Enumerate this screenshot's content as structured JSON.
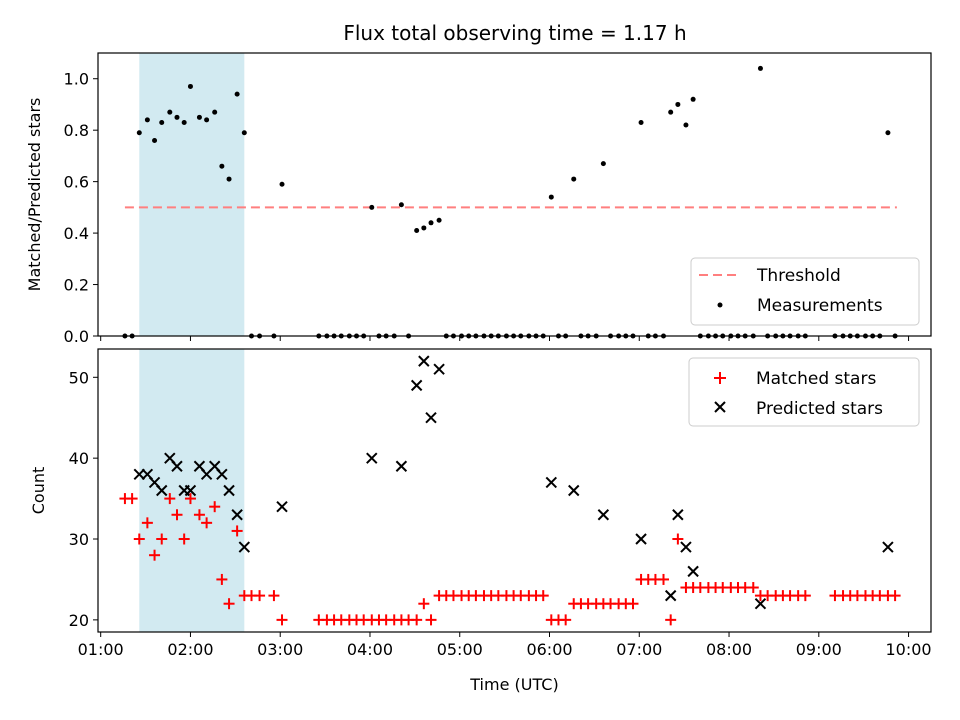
{
  "chart_data": [
    {
      "type": "scatter",
      "panel": "top",
      "title": "Flux total observing time = 1.17 h",
      "xlabel": "",
      "ylabel": "Matched/Predicted stars",
      "xlim": [
        0.97,
        10.25
      ],
      "ylim": [
        0,
        1.1
      ],
      "x_ticks": [
        1,
        2,
        3,
        4,
        5,
        6,
        7,
        8,
        9,
        10
      ],
      "x_tick_labels": [],
      "y_ticks": [
        0.0,
        0.2,
        0.4,
        0.6,
        0.8,
        1.0
      ],
      "y_tick_labels": [
        "0.0",
        "0.2",
        "0.4",
        "0.6",
        "0.8",
        "1.0"
      ],
      "shaded_region": {
        "x_start": 1.43,
        "x_end": 2.6,
        "color": "#add8e6"
      },
      "threshold": {
        "label": "Threshold",
        "value": 0.5,
        "x_start": 1.27,
        "x_end": 9.87,
        "color": "#ff7f7f"
      },
      "legend": [
        "Threshold",
        "Measurements"
      ],
      "legend_position": "bottom-right",
      "series": [
        {
          "name": "Measurements",
          "color": "#000000",
          "points": [
            [
              1.27,
              0.0
            ],
            [
              1.35,
              0.0
            ],
            [
              1.43,
              0.79
            ],
            [
              1.52,
              0.84
            ],
            [
              1.6,
              0.76
            ],
            [
              1.68,
              0.83
            ],
            [
              1.77,
              0.87
            ],
            [
              1.85,
              0.85
            ],
            [
              1.93,
              0.83
            ],
            [
              2.0,
              0.97
            ],
            [
              2.1,
              0.85
            ],
            [
              2.18,
              0.84
            ],
            [
              2.27,
              0.87
            ],
            [
              2.35,
              0.66
            ],
            [
              2.43,
              0.61
            ],
            [
              2.52,
              0.94
            ],
            [
              2.6,
              0.79
            ],
            [
              2.68,
              0.0
            ],
            [
              2.77,
              0.0
            ],
            [
              2.93,
              0.0
            ],
            [
              3.02,
              0.59
            ],
            [
              3.43,
              0.0
            ],
            [
              3.52,
              0.0
            ],
            [
              3.6,
              0.0
            ],
            [
              3.68,
              0.0
            ],
            [
              3.77,
              0.0
            ],
            [
              3.85,
              0.0
            ],
            [
              3.93,
              0.0
            ],
            [
              4.02,
              0.5
            ],
            [
              4.1,
              0.0
            ],
            [
              4.18,
              0.0
            ],
            [
              4.27,
              0.0
            ],
            [
              4.35,
              0.51
            ],
            [
              4.43,
              0.0
            ],
            [
              4.52,
              0.41
            ],
            [
              4.6,
              0.42
            ],
            [
              4.68,
              0.44
            ],
            [
              4.77,
              0.45
            ],
            [
              4.85,
              0.0
            ],
            [
              4.93,
              0.0
            ],
            [
              5.02,
              0.0
            ],
            [
              5.1,
              0.0
            ],
            [
              5.18,
              0.0
            ],
            [
              5.27,
              0.0
            ],
            [
              5.35,
              0.0
            ],
            [
              5.43,
              0.0
            ],
            [
              5.52,
              0.0
            ],
            [
              5.6,
              0.0
            ],
            [
              5.68,
              0.0
            ],
            [
              5.77,
              0.0
            ],
            [
              5.85,
              0.0
            ],
            [
              5.93,
              0.0
            ],
            [
              6.02,
              0.54
            ],
            [
              6.1,
              0.0
            ],
            [
              6.18,
              0.0
            ],
            [
              6.27,
              0.61
            ],
            [
              6.35,
              0.0
            ],
            [
              6.43,
              0.0
            ],
            [
              6.52,
              0.0
            ],
            [
              6.6,
              0.67
            ],
            [
              6.68,
              0.0
            ],
            [
              6.77,
              0.0
            ],
            [
              6.85,
              0.0
            ],
            [
              6.93,
              0.0
            ],
            [
              7.02,
              0.83
            ],
            [
              7.1,
              0.0
            ],
            [
              7.18,
              0.0
            ],
            [
              7.27,
              0.0
            ],
            [
              7.35,
              0.87
            ],
            [
              7.43,
              0.9
            ],
            [
              7.52,
              0.82
            ],
            [
              7.6,
              0.92
            ],
            [
              7.68,
              0.0
            ],
            [
              7.77,
              0.0
            ],
            [
              7.85,
              0.0
            ],
            [
              7.93,
              0.0
            ],
            [
              8.02,
              0.0
            ],
            [
              8.1,
              0.0
            ],
            [
              8.18,
              0.0
            ],
            [
              8.27,
              0.0
            ],
            [
              8.35,
              1.04
            ],
            [
              8.43,
              0.0
            ],
            [
              8.52,
              0.0
            ],
            [
              8.6,
              0.0
            ],
            [
              8.68,
              0.0
            ],
            [
              8.77,
              0.0
            ],
            [
              8.85,
              0.0
            ],
            [
              9.18,
              0.0
            ],
            [
              9.27,
              0.0
            ],
            [
              9.35,
              0.0
            ],
            [
              9.43,
              0.0
            ],
            [
              9.52,
              0.0
            ],
            [
              9.6,
              0.0
            ],
            [
              9.68,
              0.0
            ],
            [
              9.77,
              0.79
            ],
            [
              9.85,
              0.0
            ]
          ]
        }
      ]
    },
    {
      "type": "scatter",
      "panel": "bottom",
      "title": "",
      "xlabel": "Time (UTC)",
      "ylabel": "Count",
      "xlim": [
        0.97,
        10.25
      ],
      "ylim": [
        18.5,
        53.5
      ],
      "x_ticks": [
        1,
        2,
        3,
        4,
        5,
        6,
        7,
        8,
        9,
        10
      ],
      "x_tick_labels": [
        "01:00",
        "02:00",
        "03:00",
        "04:00",
        "05:00",
        "06:00",
        "07:00",
        "08:00",
        "09:00",
        "10:00"
      ],
      "y_ticks": [
        20,
        30,
        40,
        50
      ],
      "y_tick_labels": [
        "20",
        "30",
        "40",
        "50"
      ],
      "shaded_region": {
        "x_start": 1.43,
        "x_end": 2.6,
        "color": "#add8e6"
      },
      "legend": [
        "Matched stars",
        "Predicted stars"
      ],
      "legend_position": "top-right",
      "series": [
        {
          "name": "Matched stars",
          "marker": "plus",
          "color": "#ff0000",
          "points": [
            [
              1.27,
              35
            ],
            [
              1.35,
              35
            ],
            [
              1.43,
              30
            ],
            [
              1.52,
              32
            ],
            [
              1.6,
              28
            ],
            [
              1.68,
              30
            ],
            [
              1.77,
              35
            ],
            [
              1.85,
              33
            ],
            [
              1.93,
              30
            ],
            [
              2.0,
              35
            ],
            [
              2.1,
              33
            ],
            [
              2.18,
              32
            ],
            [
              2.27,
              34
            ],
            [
              2.35,
              25
            ],
            [
              2.43,
              22
            ],
            [
              2.52,
              31
            ],
            [
              2.6,
              23
            ],
            [
              2.68,
              23
            ],
            [
              2.77,
              23
            ],
            [
              2.93,
              23
            ],
            [
              3.02,
              20
            ],
            [
              3.43,
              20
            ],
            [
              3.52,
              20
            ],
            [
              3.6,
              20
            ],
            [
              3.68,
              20
            ],
            [
              3.77,
              20
            ],
            [
              3.85,
              20
            ],
            [
              3.93,
              20
            ],
            [
              4.02,
              20
            ],
            [
              4.1,
              20
            ],
            [
              4.18,
              20
            ],
            [
              4.27,
              20
            ],
            [
              4.35,
              20
            ],
            [
              4.43,
              20
            ],
            [
              4.52,
              20
            ],
            [
              4.6,
              22
            ],
            [
              4.68,
              20
            ],
            [
              4.77,
              23
            ],
            [
              4.85,
              23
            ],
            [
              4.93,
              23
            ],
            [
              5.02,
              23
            ],
            [
              5.1,
              23
            ],
            [
              5.18,
              23
            ],
            [
              5.27,
              23
            ],
            [
              5.35,
              23
            ],
            [
              5.43,
              23
            ],
            [
              5.52,
              23
            ],
            [
              5.6,
              23
            ],
            [
              5.68,
              23
            ],
            [
              5.77,
              23
            ],
            [
              5.85,
              23
            ],
            [
              5.93,
              23
            ],
            [
              6.02,
              20
            ],
            [
              6.1,
              20
            ],
            [
              6.18,
              20
            ],
            [
              6.27,
              22
            ],
            [
              6.35,
              22
            ],
            [
              6.43,
              22
            ],
            [
              6.52,
              22
            ],
            [
              6.6,
              22
            ],
            [
              6.68,
              22
            ],
            [
              6.77,
              22
            ],
            [
              6.85,
              22
            ],
            [
              6.93,
              22
            ],
            [
              7.02,
              25
            ],
            [
              7.1,
              25
            ],
            [
              7.18,
              25
            ],
            [
              7.27,
              25
            ],
            [
              7.35,
              20
            ],
            [
              7.43,
              30
            ],
            [
              7.52,
              24
            ],
            [
              7.6,
              24
            ],
            [
              7.68,
              24
            ],
            [
              7.77,
              24
            ],
            [
              7.85,
              24
            ],
            [
              7.93,
              24
            ],
            [
              8.02,
              24
            ],
            [
              8.1,
              24
            ],
            [
              8.18,
              24
            ],
            [
              8.27,
              24
            ],
            [
              8.35,
              23
            ],
            [
              8.43,
              23
            ],
            [
              8.52,
              23
            ],
            [
              8.6,
              23
            ],
            [
              8.68,
              23
            ],
            [
              8.77,
              23
            ],
            [
              8.85,
              23
            ],
            [
              9.18,
              23
            ],
            [
              9.27,
              23
            ],
            [
              9.35,
              23
            ],
            [
              9.43,
              23
            ],
            [
              9.52,
              23
            ],
            [
              9.6,
              23
            ],
            [
              9.68,
              23
            ],
            [
              9.77,
              23
            ],
            [
              9.85,
              23
            ]
          ]
        },
        {
          "name": "Predicted stars",
          "marker": "x",
          "color": "#000000",
          "points": [
            [
              1.43,
              38
            ],
            [
              1.52,
              38
            ],
            [
              1.6,
              37
            ],
            [
              1.68,
              36
            ],
            [
              1.77,
              40
            ],
            [
              1.85,
              39
            ],
            [
              1.93,
              36
            ],
            [
              2.0,
              36
            ],
            [
              2.1,
              39
            ],
            [
              2.18,
              38
            ],
            [
              2.27,
              39
            ],
            [
              2.35,
              38
            ],
            [
              2.43,
              36
            ],
            [
              2.52,
              33
            ],
            [
              2.6,
              29
            ],
            [
              3.02,
              34
            ],
            [
              4.02,
              40
            ],
            [
              4.35,
              39
            ],
            [
              4.52,
              49
            ],
            [
              4.6,
              52
            ],
            [
              4.68,
              45
            ],
            [
              4.77,
              51
            ],
            [
              6.02,
              37
            ],
            [
              6.27,
              36
            ],
            [
              6.6,
              33
            ],
            [
              7.02,
              30
            ],
            [
              7.35,
              23
            ],
            [
              7.43,
              33
            ],
            [
              7.52,
              29
            ],
            [
              7.6,
              26
            ],
            [
              8.35,
              22
            ],
            [
              9.77,
              29
            ]
          ]
        }
      ]
    }
  ]
}
